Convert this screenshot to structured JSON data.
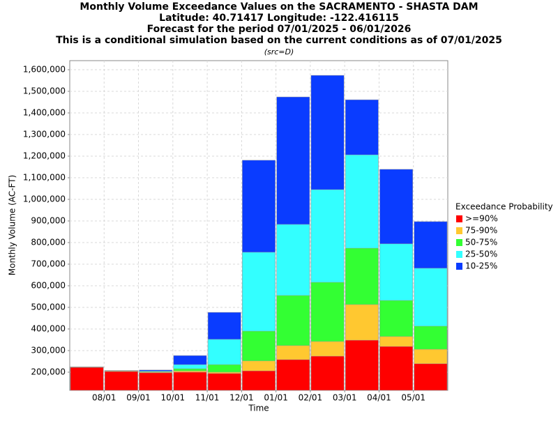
{
  "chart_data": {
    "type": "bar",
    "title": "Monthly Volume Exceedance Values on the SACRAMENTO - SHASTA DAM",
    "subtitle": [
      "Latitude: 40.71417 Longitude: -122.416115",
      "Forecast for the period 07/01/2025 - 06/01/2026",
      "This is a conditional simulation based on the current conditions as of 07/01/2025"
    ],
    "note": "(src=D)",
    "x_label": "Time",
    "y_label": "Monthly Volume (AC-FT)",
    "legend_title": "Exceedance Probability",
    "categories": [
      null,
      null,
      null,
      null,
      null,
      null,
      null,
      null,
      null,
      null,
      null
    ],
    "xticks": [
      "08/01",
      "09/01",
      "10/01",
      "11/01",
      "12/01",
      "01/01",
      "02/01",
      "03/01",
      "04/01",
      "05/01"
    ],
    "series": [
      {
        "name": ">=90%",
        "color": "#ff0000",
        "values": [
          222000,
          203000,
          197000,
          200000,
          194000,
          206000,
          258000,
          274000,
          348000,
          319000,
          239000
        ]
      },
      {
        "name": "75-90%",
        "color": "#ffc830",
        "values": [
          223000,
          205000,
          200000,
          206000,
          200000,
          252000,
          323000,
          342000,
          513000,
          365000,
          306000
        ]
      },
      {
        "name": "50-75%",
        "color": "#33ff33",
        "values": [
          224000,
          206000,
          202000,
          216000,
          235000,
          390000,
          555000,
          616000,
          774000,
          532000,
          413000
        ]
      },
      {
        "name": "25-50%",
        "color": "#33ffff",
        "values": [
          224000,
          207000,
          205000,
          235000,
          352000,
          755000,
          884000,
          1045000,
          1206000,
          794000,
          681000
        ]
      },
      {
        "name": "10-25%",
        "color": "#0a3cff",
        "values": [
          225000,
          208000,
          210000,
          277000,
          477000,
          1181000,
          1474000,
          1574000,
          1461000,
          1139000,
          897000
        ]
      }
    ],
    "ylim": [
      116000,
      1642000
    ],
    "yticks": [
      {
        "value": 200000,
        "label": "200,000"
      },
      {
        "value": 300000,
        "label": "300,000"
      },
      {
        "value": 400000,
        "label": "400,000"
      },
      {
        "value": 500000,
        "label": "500,000"
      },
      {
        "value": 600000,
        "label": "600,000"
      },
      {
        "value": 700000,
        "label": "700,000"
      },
      {
        "value": 800000,
        "label": "800,000"
      },
      {
        "value": 900000,
        "label": "900,000"
      },
      {
        "value": 1000000,
        "label": "1,000,000"
      },
      {
        "value": 1100000,
        "label": "1,100,000"
      },
      {
        "value": 1200000,
        "label": "1,200,000"
      },
      {
        "value": 1300000,
        "label": "1,300,000"
      },
      {
        "value": 1400000,
        "label": "1,400,000"
      },
      {
        "value": 1500000,
        "label": "1,500,000"
      },
      {
        "value": 1600000,
        "label": "1,600,000"
      }
    ],
    "grid": true
  }
}
